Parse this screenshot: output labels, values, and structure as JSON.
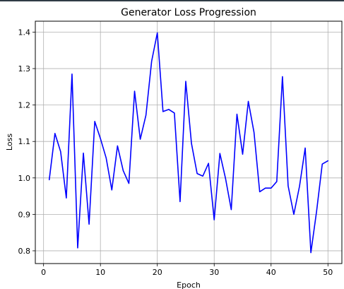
{
  "chart_data": {
    "type": "line",
    "title": "Generator Loss Progression",
    "xlabel": "Epoch",
    "ylabel": "Loss",
    "xlim": [
      -1.45,
      52.45
    ],
    "ylim": [
      0.765,
      1.43
    ],
    "grid": true,
    "x_ticks": [
      0,
      10,
      20,
      30,
      40,
      50
    ],
    "y_ticks": [
      0.8,
      0.9,
      1.0,
      1.1,
      1.2,
      1.3,
      1.4
    ],
    "x_tick_labels": [
      "0",
      "10",
      "20",
      "30",
      "40",
      "50"
    ],
    "y_tick_labels": [
      "0.8",
      "0.9",
      "1.0",
      "1.1",
      "1.2",
      "1.3",
      "1.4"
    ],
    "series": [
      {
        "color": "#0000ff",
        "x": [
          1,
          2,
          3,
          4,
          5,
          6,
          7,
          8,
          9,
          10,
          11,
          12,
          13,
          14,
          15,
          16,
          17,
          18,
          19,
          20,
          21,
          22,
          23,
          24,
          25,
          26,
          27,
          28,
          29,
          30,
          31,
          32,
          33,
          34,
          35,
          36,
          37,
          38,
          39,
          40,
          41,
          42,
          43,
          44,
          45,
          46,
          47,
          48,
          49,
          50
        ],
        "y": [
          0.995,
          1.122,
          1.072,
          0.945,
          1.285,
          0.808,
          1.068,
          0.873,
          1.155,
          1.108,
          1.055,
          0.967,
          1.088,
          1.02,
          0.985,
          1.238,
          1.106,
          1.172,
          1.32,
          1.398,
          1.182,
          1.188,
          1.178,
          0.935,
          1.265,
          1.095,
          1.012,
          1.005,
          1.04,
          0.885,
          1.067,
          0.998,
          0.913,
          1.175,
          1.065,
          1.21,
          1.125,
          0.962,
          0.972,
          0.972,
          0.99,
          1.278,
          0.978,
          0.9,
          0.977,
          1.082,
          0.795,
          0.908,
          1.038,
          1.047
        ]
      }
    ]
  }
}
